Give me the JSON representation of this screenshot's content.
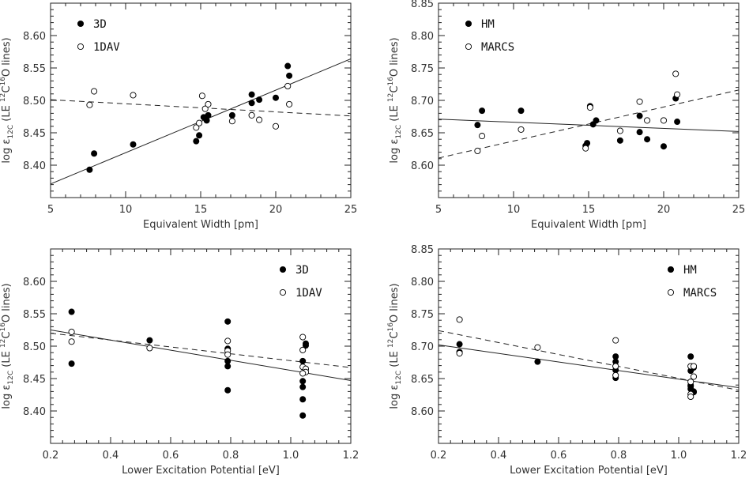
{
  "chart_data": [
    {
      "type": "scatter",
      "xlabel": "Equivalent Width [pm]",
      "ylabel_parts": {
        "main": "log ε",
        "sub": "12C",
        "paren_open": " (LE ",
        "iso1": "12",
        "c": "C",
        "iso2": "16",
        "o": "O lines)"
      },
      "xlim": [
        5,
        25
      ],
      "ylim": [
        8.35,
        8.65
      ],
      "xticks": [
        5,
        10,
        15,
        20,
        25
      ],
      "yticks": [
        8.4,
        8.45,
        8.5,
        8.55,
        8.6
      ],
      "xtick_labels": [
        "5",
        "10",
        "15",
        "20",
        "25"
      ],
      "ytick_labels": [
        "8.40",
        "8.45",
        "8.50",
        "8.55",
        "8.60"
      ],
      "legend_position": "top-left",
      "series": [
        {
          "name": "3D",
          "marker": "filled",
          "points": [
            [
              7.6,
              8.393
            ],
            [
              7.9,
              8.418
            ],
            [
              10.5,
              8.432
            ],
            [
              14.7,
              8.437
            ],
            [
              14.9,
              8.446
            ],
            [
              15.2,
              8.474
            ],
            [
              15.4,
              8.469
            ],
            [
              15.5,
              8.477
            ],
            [
              17.1,
              8.477
            ],
            [
              18.4,
              8.496
            ],
            [
              18.4,
              8.509
            ],
            [
              18.9,
              8.501
            ],
            [
              20.0,
              8.504
            ],
            [
              20.8,
              8.553
            ],
            [
              20.9,
              8.538
            ]
          ]
        },
        {
          "name": "1DAV",
          "marker": "open",
          "points": [
            [
              7.6,
              8.493
            ],
            [
              7.9,
              8.514
            ],
            [
              10.5,
              8.508
            ],
            [
              14.7,
              8.458
            ],
            [
              14.9,
              8.465
            ],
            [
              15.1,
              8.507
            ],
            [
              15.3,
              8.487
            ],
            [
              15.5,
              8.494
            ],
            [
              17.1,
              8.468
            ],
            [
              18.4,
              8.477
            ],
            [
              18.9,
              8.47
            ],
            [
              20.0,
              8.46
            ],
            [
              20.8,
              8.522
            ],
            [
              20.9,
              8.494
            ]
          ]
        }
      ],
      "fits": [
        {
          "series": "3D",
          "style": "solid",
          "x": [
            5,
            25
          ],
          "y": [
            8.371,
            8.564
          ]
        },
        {
          "series": "1DAV",
          "style": "dashed",
          "x": [
            5,
            25
          ],
          "y": [
            8.501,
            8.476
          ]
        }
      ]
    },
    {
      "type": "scatter",
      "xlabel": "Equivalent Width [pm]",
      "ylabel_parts": {
        "main": "log ε",
        "sub": "12C",
        "paren_open": " (LE ",
        "iso1": "12",
        "c": "C",
        "iso2": "16",
        "o": "O lines)"
      },
      "xlim": [
        5,
        25
      ],
      "ylim": [
        8.55,
        8.85
      ],
      "xticks": [
        5,
        10,
        15,
        20,
        25
      ],
      "yticks": [
        8.6,
        8.65,
        8.7,
        8.75,
        8.8,
        8.85
      ],
      "xtick_labels": [
        "5",
        "10",
        "15",
        "20",
        "25"
      ],
      "ytick_labels": [
        "8.60",
        "8.65",
        "8.70",
        "8.75",
        "8.80",
        "8.85"
      ],
      "legend_position": "top-left",
      "series": [
        {
          "name": "HM",
          "marker": "filled",
          "points": [
            [
              7.6,
              8.662
            ],
            [
              7.9,
              8.684
            ],
            [
              10.5,
              8.684
            ],
            [
              14.8,
              8.63
            ],
            [
              14.9,
              8.634
            ],
            [
              15.1,
              8.691
            ],
            [
              15.3,
              8.663
            ],
            [
              15.5,
              8.669
            ],
            [
              17.1,
              8.638
            ],
            [
              18.4,
              8.676
            ],
            [
              18.4,
              8.651
            ],
            [
              18.9,
              8.64
            ],
            [
              20.0,
              8.629
            ],
            [
              20.8,
              8.703
            ],
            [
              20.9,
              8.667
            ]
          ]
        },
        {
          "name": "MARCS",
          "marker": "open",
          "points": [
            [
              7.6,
              8.622
            ],
            [
              7.9,
              8.645
            ],
            [
              10.5,
              8.655
            ],
            [
              14.8,
              8.626
            ],
            [
              15.1,
              8.689
            ],
            [
              17.1,
              8.653
            ],
            [
              18.4,
              8.698
            ],
            [
              18.9,
              8.669
            ],
            [
              20.0,
              8.669
            ],
            [
              20.8,
              8.741
            ],
            [
              20.9,
              8.709
            ]
          ]
        }
      ],
      "fits": [
        {
          "series": "HM",
          "style": "solid",
          "x": [
            5,
            25
          ],
          "y": [
            8.671,
            8.652
          ]
        },
        {
          "series": "MARCS",
          "style": "dashed",
          "x": [
            5,
            25
          ],
          "y": [
            8.611,
            8.716
          ]
        }
      ]
    },
    {
      "type": "scatter",
      "xlabel": "Lower Excitation Potential [eV]",
      "ylabel_parts": {
        "main": "log ε",
        "sub": "12C",
        "paren_open": " (LE ",
        "iso1": "12",
        "c": "C",
        "iso2": "16",
        "o": "O lines)"
      },
      "xlim": [
        0.2,
        1.2
      ],
      "ylim": [
        8.35,
        8.65
      ],
      "xticks": [
        0.2,
        0.4,
        0.6,
        0.8,
        1.0,
        1.2
      ],
      "yticks": [
        8.4,
        8.45,
        8.5,
        8.55,
        8.6
      ],
      "xtick_labels": [
        "0.2",
        "0.4",
        "0.6",
        "0.8",
        "1.0",
        "1.2"
      ],
      "ytick_labels": [
        "8.40",
        "8.45",
        "8.50",
        "8.55",
        "8.60"
      ],
      "legend_position": "top-right",
      "series": [
        {
          "name": "3D",
          "marker": "filled",
          "points": [
            [
              0.27,
              8.553
            ],
            [
              0.27,
              8.473
            ],
            [
              0.53,
              8.509
            ],
            [
              0.79,
              8.538
            ],
            [
              0.79,
              8.496
            ],
            [
              0.79,
              8.477
            ],
            [
              0.79,
              8.469
            ],
            [
              0.79,
              8.432
            ],
            [
              1.04,
              8.477
            ],
            [
              1.04,
              8.446
            ],
            [
              1.04,
              8.437
            ],
            [
              1.04,
              8.418
            ],
            [
              1.04,
              8.393
            ],
            [
              1.05,
              8.501
            ],
            [
              1.05,
              8.504
            ],
            [
              1.05,
              8.465
            ]
          ]
        },
        {
          "name": "1DAV",
          "marker": "open",
          "points": [
            [
              0.27,
              8.522
            ],
            [
              0.27,
              8.507
            ],
            [
              0.53,
              8.497
            ],
            [
              0.79,
              8.508
            ],
            [
              0.79,
              8.493
            ],
            [
              0.79,
              8.487
            ],
            [
              1.04,
              8.514
            ],
            [
              1.04,
              8.494
            ],
            [
              1.04,
              8.468
            ],
            [
              1.05,
              8.465
            ],
            [
              1.05,
              8.46
            ],
            [
              1.04,
              8.458
            ]
          ]
        }
      ],
      "fits": [
        {
          "series": "3D",
          "style": "solid",
          "x": [
            0.2,
            1.2
          ],
          "y": [
            8.525,
            8.447
          ]
        },
        {
          "series": "1DAV",
          "style": "dashed",
          "x": [
            0.2,
            1.2
          ],
          "y": [
            8.52,
            8.467
          ]
        }
      ]
    },
    {
      "type": "scatter",
      "xlabel": "Lower Excitation Potential [eV]",
      "ylabel_parts": {
        "main": "log ε",
        "sub": "12C",
        "paren_open": " (LE ",
        "iso1": "12",
        "c": "C",
        "iso2": "16",
        "o": "O lines)"
      },
      "xlim": [
        0.2,
        1.2
      ],
      "ylim": [
        8.55,
        8.85
      ],
      "xticks": [
        0.2,
        0.4,
        0.6,
        0.8,
        1.0,
        1.2
      ],
      "yticks": [
        8.6,
        8.65,
        8.7,
        8.75,
        8.8,
        8.85
      ],
      "xtick_labels": [
        "0.2",
        "0.4",
        "0.6",
        "0.8",
        "1.0",
        "1.2"
      ],
      "ytick_labels": [
        "8.60",
        "8.65",
        "8.70",
        "8.75",
        "8.80",
        "8.85"
      ],
      "legend_position": "top-right",
      "series": [
        {
          "name": "HM",
          "marker": "filled",
          "points": [
            [
              0.27,
              8.703
            ],
            [
              0.27,
              8.691
            ],
            [
              0.53,
              8.676
            ],
            [
              0.79,
              8.684
            ],
            [
              0.79,
              8.676
            ],
            [
              0.79,
              8.669
            ],
            [
              0.79,
              8.663
            ],
            [
              0.79,
              8.651
            ],
            [
              1.04,
              8.684
            ],
            [
              1.04,
              8.662
            ],
            [
              1.04,
              8.64
            ],
            [
              1.04,
              8.634
            ],
            [
              1.05,
              8.629
            ],
            [
              1.05,
              8.63
            ],
            [
              1.05,
              8.667
            ],
            [
              1.04,
              8.638
            ]
          ]
        },
        {
          "name": "MARCS",
          "marker": "open",
          "points": [
            [
              0.27,
              8.741
            ],
            [
              0.27,
              8.689
            ],
            [
              0.53,
              8.698
            ],
            [
              0.79,
              8.709
            ],
            [
              0.79,
              8.669
            ],
            [
              0.79,
              8.655
            ],
            [
              1.04,
              8.669
            ],
            [
              1.04,
              8.645
            ],
            [
              1.04,
              8.626
            ],
            [
              1.04,
              8.622
            ],
            [
              1.05,
              8.669
            ],
            [
              1.05,
              8.653
            ]
          ]
        }
      ],
      "fits": [
        {
          "series": "HM",
          "style": "solid",
          "x": [
            0.2,
            1.2
          ],
          "y": [
            8.702,
            8.636
          ]
        },
        {
          "series": "MARCS",
          "style": "dashed",
          "x": [
            0.2,
            1.2
          ],
          "y": [
            8.724,
            8.632
          ]
        }
      ]
    }
  ]
}
